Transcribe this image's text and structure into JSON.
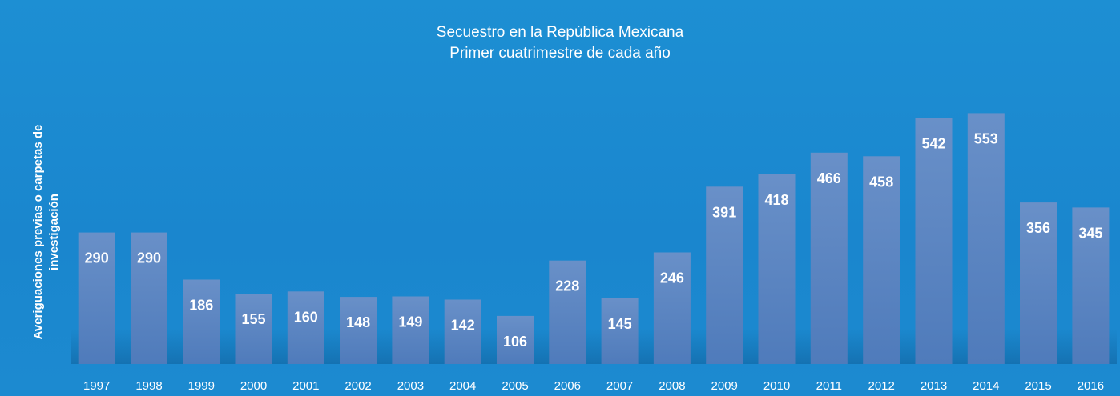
{
  "colors": {
    "background": "#1a87cf",
    "bar": "#5b86c2",
    "text": "#ffffff"
  },
  "chart_data": {
    "type": "bar",
    "title": "Secuestro en la República Mexicana",
    "subtitle": "Primer cuatrimestre de cada año",
    "xlabel": "",
    "ylabel": "Averiguaciones previas o carpetas de investigación",
    "categories": [
      "1997",
      "1998",
      "1999",
      "2000",
      "2001",
      "2002",
      "2003",
      "2004",
      "2005",
      "2006",
      "2007",
      "2008",
      "2009",
      "2010",
      "2011",
      "2012",
      "2013",
      "2014",
      "2015",
      "2016"
    ],
    "values": [
      290,
      290,
      186,
      155,
      160,
      148,
      149,
      142,
      106,
      228,
      145,
      246,
      391,
      418,
      466,
      458,
      542,
      553,
      356,
      345
    ],
    "data_labels": true,
    "grid": false,
    "legend": "none"
  }
}
